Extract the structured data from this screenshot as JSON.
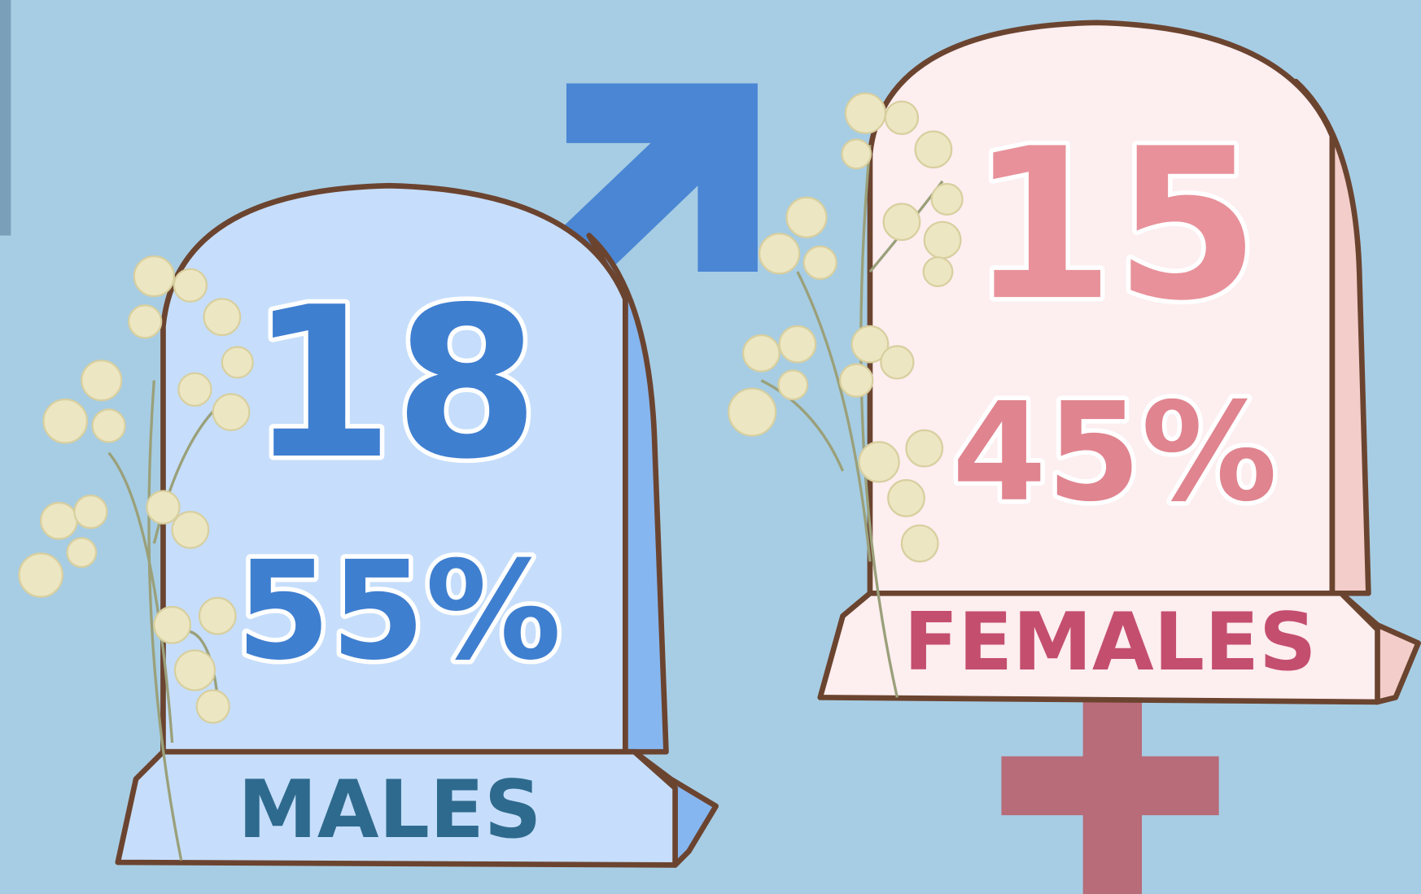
{
  "males": {
    "count": "18",
    "percent": "55%",
    "label": "MALES"
  },
  "females": {
    "count": "15",
    "percent": "45%",
    "label": "FEMALES"
  }
}
